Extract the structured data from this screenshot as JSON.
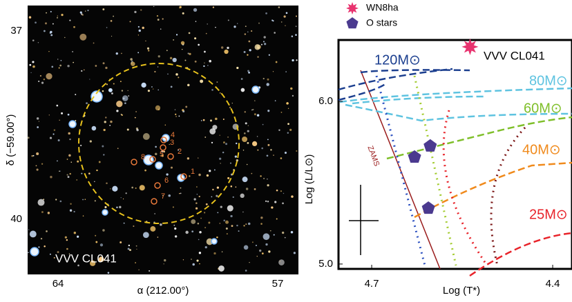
{
  "chart_data": [
    {
      "type": "image",
      "annotation": "VVV CL041",
      "xlabel": "α (212.00°)",
      "ylabel": "δ (−59.00°)",
      "xlim": [
        64.97,
        56.34
      ],
      "xticks": [
        64,
        57
      ],
      "ylim": [
        36.59,
        40.88
      ],
      "yticks": [
        37,
        40
      ],
      "star_labels": [
        "1",
        "2",
        "3",
        "4",
        "5",
        "6",
        "7",
        "8"
      ]
    },
    {
      "type": "scatter",
      "xlabel": "Log (T*)",
      "ylabel": "Log (L/L⊙)",
      "xlim": [
        4.755,
        4.368
      ],
      "xticks": [
        4.7,
        4.4
      ],
      "ylim": [
        4.97,
        6.377
      ],
      "yticks": [
        {
          "value": 5.0,
          "label": "5.0"
        },
        {
          "value": 6.0,
          "label": "6.0"
        }
      ],
      "annotations": [
        "VVV CL041",
        "120M⊙",
        "80M⊙",
        "60M⊙",
        "40M⊙",
        "25M⊙",
        "ZAMS"
      ],
      "series": [
        {
          "name": "WN8ha",
          "color": "#e8336f",
          "marker": "star",
          "x": [
            4.537
          ],
          "values": [
            6.335
          ]
        },
        {
          "name": "O stars",
          "color": "#4b3a8f",
          "marker": "pentagon",
          "x": [
            4.629,
            4.603,
            4.606
          ],
          "values": [
            5.657,
            5.725,
            5.343
          ]
        }
      ]
    }
  ]
}
